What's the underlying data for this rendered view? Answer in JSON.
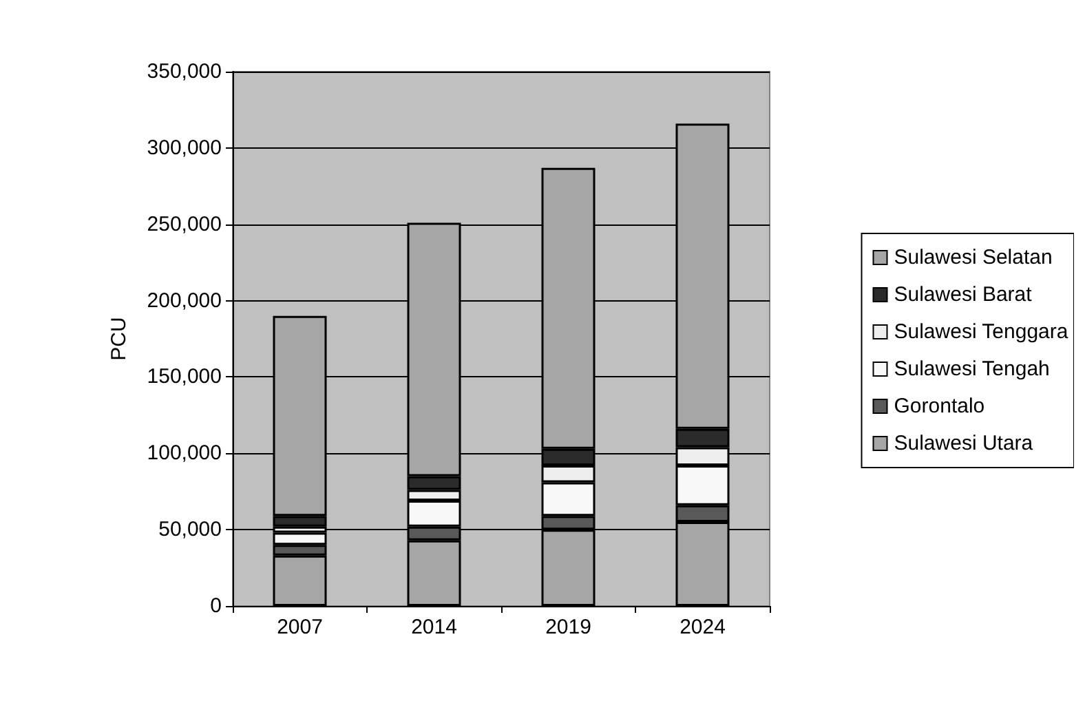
{
  "chart_data": {
    "type": "bar",
    "ylabel": "PCU",
    "categories": [
      "2007",
      "2014",
      "2019",
      "2024"
    ],
    "stacked": true,
    "ylim": [
      0,
      350000
    ],
    "yticks": [
      0,
      {
        "value": 50000,
        "label": "50,000"
      },
      {
        "value": 100000,
        "label": "100,000"
      },
      {
        "value": 150000,
        "label": "150,000"
      },
      {
        "value": 200000,
        "label": "200,000"
      },
      {
        "value": 250000,
        "label": "250,000"
      },
      {
        "value": 300000,
        "label": "300,000"
      },
      {
        "value": 350000,
        "label": "350,000"
      }
    ],
    "grid": "y",
    "legend": "right",
    "series": [
      {
        "name": "Sulawesi Utara",
        "color": "#a6a6a6",
        "values": [
          33000,
          43000,
          50000,
          55000
        ]
      },
      {
        "name": "Gorontalo",
        "color": "#595959",
        "values": [
          7000,
          9000,
          9000,
          11000
        ]
      },
      {
        "name": "Sulawesi Tengah",
        "color": "#f8f8f8",
        "values": [
          8000,
          17000,
          22000,
          26000
        ]
      },
      {
        "name": "Sulawesi Tenggara",
        "color": "#eeeeee",
        "values": [
          4000,
          7000,
          11000,
          12000
        ]
      },
      {
        "name": "Sulawesi Barat",
        "color": "#2b2b2b",
        "values": [
          7000,
          9000,
          11000,
          12000
        ]
      },
      {
        "name": "Sulawesi Selatan",
        "color": "#a6a6a6",
        "values": [
          131000,
          166000,
          184000,
          200000
        ]
      }
    ]
  }
}
